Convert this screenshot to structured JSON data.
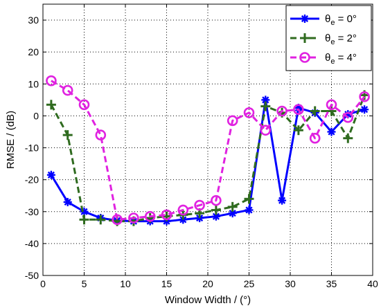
{
  "chart_data": {
    "type": "line",
    "title": "",
    "xlabel": "Window Width / (°)",
    "ylabel": "RMSE / (dB)",
    "xlim": [
      0,
      40
    ],
    "ylim": [
      -50,
      35
    ],
    "xticks": [
      0,
      5,
      10,
      15,
      20,
      25,
      30,
      35,
      40
    ],
    "yticks": [
      -50,
      -40,
      -30,
      -20,
      -10,
      0,
      10,
      20,
      30
    ],
    "grid": true,
    "legend_position": "top-right",
    "x": [
      1,
      3,
      5,
      7,
      9,
      11,
      13,
      15,
      17,
      19,
      21,
      23,
      25,
      27,
      29,
      31,
      33,
      35,
      37,
      39
    ],
    "series": [
      {
        "name": "θe = 0°",
        "name_base": "θ",
        "name_sub": "e",
        "name_rest": " = 0°",
        "color": "#0000ff",
        "line_style": "solid",
        "marker": "asterisk",
        "values": [
          -18.5,
          -27,
          -30,
          -32,
          -32.8,
          -33,
          -33,
          -33,
          -32.5,
          -32,
          -31.5,
          -30.5,
          -29.5,
          5,
          -26.5,
          2.5,
          1,
          -5,
          0.5,
          2
        ]
      },
      {
        "name": "θe = 2°",
        "name_base": "θ",
        "name_sub": "e",
        "name_rest": " = 2°",
        "color": "#2f6b1f",
        "line_style": "dashed",
        "marker": "plus",
        "values": [
          3.5,
          -6,
          -32.5,
          -32.5,
          -33,
          -33,
          -32,
          -31.5,
          -31,
          -30.5,
          -29.5,
          -28.5,
          -26,
          3,
          1,
          -4.5,
          1.5,
          1.5,
          -7,
          6.5
        ]
      },
      {
        "name": "θe = 4°",
        "name_base": "θ",
        "name_sub": "e",
        "name_rest": " = 4°",
        "color": "#e022e0",
        "line_style": "dashed",
        "marker": "circle",
        "values": [
          11,
          8,
          3.5,
          -6,
          -32.5,
          -32,
          -31.5,
          -31,
          -29.5,
          -28,
          -26.5,
          -1.5,
          1,
          -4.5,
          1.5,
          2,
          -7,
          3.5,
          -0.5,
          6
        ]
      }
    ]
  }
}
